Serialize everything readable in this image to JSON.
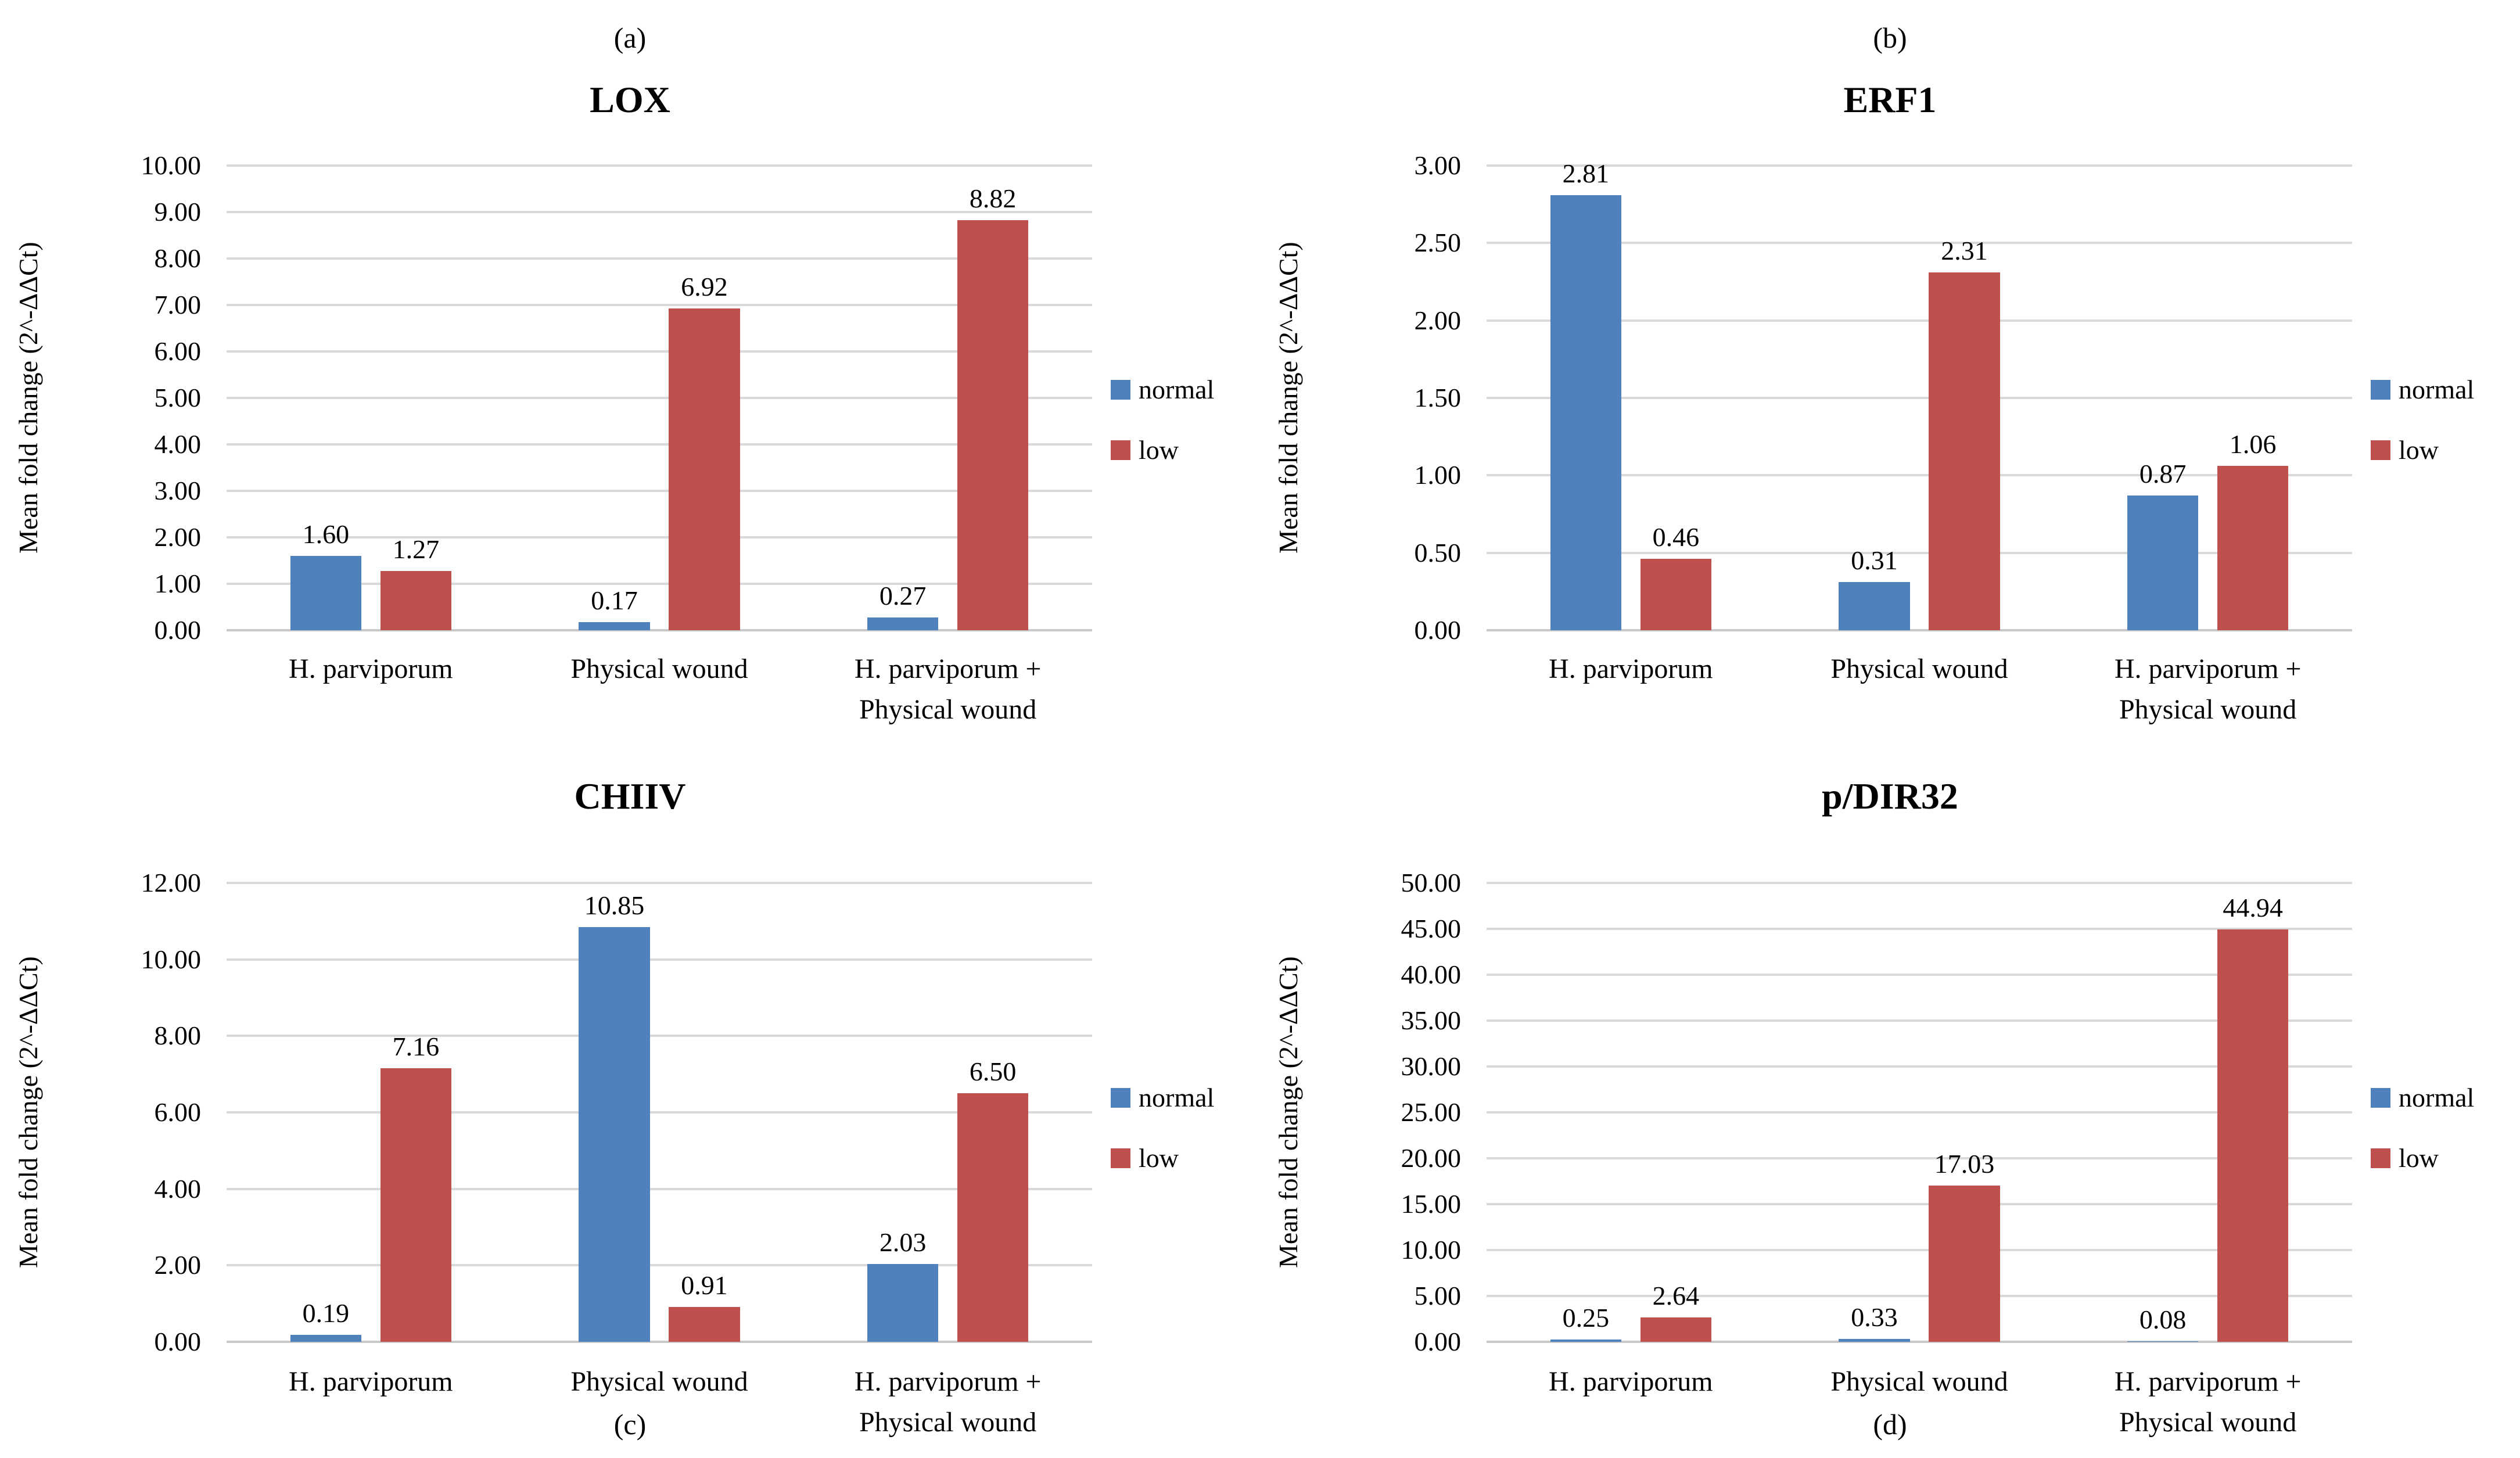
{
  "figure": {
    "background": "#FFFFFF"
  },
  "colors": {
    "normal": "#4F81BD",
    "low": "#C0504D",
    "gridline": "#D9D9D9",
    "axis_line": "#C9C9C9",
    "text": "#000000"
  },
  "chart_data": [
    {
      "type": "bar",
      "panel_label": "(a)",
      "title": "LOX",
      "ylabel": "Mean fold change (2^-ΔΔCt)",
      "categories": [
        "H. parviporum",
        "Physical wound",
        "H. parviporum + Physical wound"
      ],
      "category_lines": [
        [
          "H. parviporum"
        ],
        [
          "Physical wound"
        ],
        [
          "H. parviporum +",
          "Physical wound"
        ]
      ],
      "series": [
        {
          "name": "normal",
          "color": "#4F81BD",
          "values": [
            1.6,
            0.17,
            0.27
          ],
          "value_labels": [
            "1.60",
            "0.17",
            "0.27"
          ]
        },
        {
          "name": "low",
          "color": "#C0504D",
          "values": [
            1.27,
            6.92,
            8.82
          ],
          "value_labels": [
            "1.27",
            "6.92",
            "8.82"
          ]
        }
      ],
      "ylim": [
        0,
        10
      ],
      "ytick_step": 1.0,
      "ytick_labels": [
        "0.00",
        "1.00",
        "2.00",
        "3.00",
        "4.00",
        "5.00",
        "6.00",
        "7.00",
        "8.00",
        "9.00",
        "10.00"
      ],
      "grid": true,
      "legend_position": "right"
    },
    {
      "type": "bar",
      "panel_label": "(b)",
      "title": "ERF1",
      "ylabel": "Mean fold change (2^-ΔΔCt)",
      "categories": [
        "H. parviporum",
        "Physical wound",
        "H. parviporum + Physical wound"
      ],
      "category_lines": [
        [
          "H. parviporum"
        ],
        [
          "Physical wound"
        ],
        [
          "H. parviporum +",
          "Physical wound"
        ]
      ],
      "series": [
        {
          "name": "normal",
          "color": "#4F81BD",
          "values": [
            2.81,
            0.31,
            0.87
          ],
          "value_labels": [
            "2.81",
            "0.31",
            "0.87"
          ]
        },
        {
          "name": "low",
          "color": "#C0504D",
          "values": [
            0.46,
            2.31,
            1.06
          ],
          "value_labels": [
            "0.46",
            "2.31",
            "1.06"
          ]
        }
      ],
      "ylim": [
        0,
        3
      ],
      "ytick_step": 0.5,
      "ytick_labels": [
        "0.00",
        "0.50",
        "1.00",
        "1.50",
        "2.00",
        "2.50",
        "3.00"
      ],
      "grid": true,
      "legend_position": "right"
    },
    {
      "type": "bar",
      "panel_label": "(c)",
      "title": "CHIIV",
      "ylabel": "Mean fold change (2^-ΔΔCt)",
      "categories": [
        "H. parviporum",
        "Physical wound",
        "H. parviporum + Physical wound"
      ],
      "category_lines": [
        [
          "H. parviporum"
        ],
        [
          "Physical wound"
        ],
        [
          "H. parviporum +",
          "Physical wound"
        ]
      ],
      "series": [
        {
          "name": "normal",
          "color": "#4F81BD",
          "values": [
            0.19,
            10.85,
            2.03
          ],
          "value_labels": [
            "0.19",
            "10.85",
            "2.03"
          ]
        },
        {
          "name": "low",
          "color": "#C0504D",
          "values": [
            7.16,
            0.91,
            6.5
          ],
          "value_labels": [
            "7.16",
            "0.91",
            "6.50"
          ]
        }
      ],
      "ylim": [
        0,
        12
      ],
      "ytick_step": 2.0,
      "ytick_labels": [
        "0.00",
        "2.00",
        "4.00",
        "6.00",
        "8.00",
        "10.00",
        "12.00"
      ],
      "grid": true,
      "legend_position": "right"
    },
    {
      "type": "bar",
      "panel_label": "(d)",
      "title": "p/DIR32",
      "ylabel": "Mean fold change (2^-ΔΔCt)",
      "categories": [
        "H. parviporum",
        "Physical wound",
        "H. parviporum + Physical wound"
      ],
      "category_lines": [
        [
          "H. parviporum"
        ],
        [
          "Physical wound"
        ],
        [
          "H. parviporum +",
          "Physical wound"
        ]
      ],
      "series": [
        {
          "name": "normal",
          "color": "#4F81BD",
          "values": [
            0.25,
            0.33,
            0.08
          ],
          "value_labels": [
            "0.25",
            "0.33",
            "0.08"
          ]
        },
        {
          "name": "low",
          "color": "#C0504D",
          "values": [
            2.64,
            17.03,
            44.94
          ],
          "value_labels": [
            "2.64",
            "17.03",
            "44.94"
          ]
        }
      ],
      "ylim": [
        0,
        50
      ],
      "ytick_step": 5.0,
      "ytick_labels": [
        "0.00",
        "5.00",
        "10.00",
        "15.00",
        "20.00",
        "25.00",
        "30.00",
        "35.00",
        "40.00",
        "45.00",
        "50.00"
      ],
      "grid": true,
      "legend_position": "right"
    }
  ]
}
